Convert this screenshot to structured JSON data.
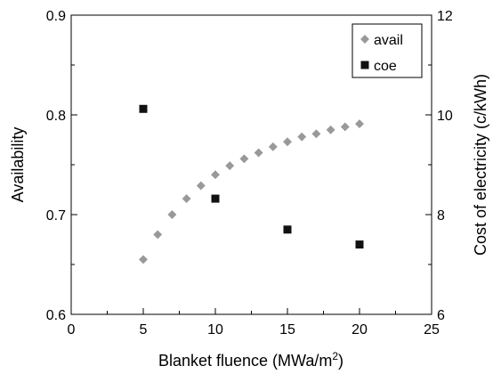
{
  "chart_data": {
    "type": "scatter",
    "title": "",
    "xlabel": "Blanket fluence (MWa/m",
    "xlabel_superscript": "2",
    "xlabel_suffix": ")",
    "ylabel_left": "Availability",
    "ylabel_right": "Cost of electricity (c/kWh)",
    "xlim": [
      0,
      25
    ],
    "ylim_left": [
      0.6,
      0.9
    ],
    "ylim_right": [
      6,
      12
    ],
    "x_ticks": [
      "0",
      "5",
      "10",
      "15",
      "20",
      "25"
    ],
    "y_left_ticks": [
      "0.6",
      "0.7",
      "0.8",
      "0.9"
    ],
    "y_right_ticks": [
      "6",
      "8",
      "10",
      "12"
    ],
    "grid": false,
    "legend_position": "top-right",
    "series": [
      {
        "name": "avail",
        "axis": "left",
        "marker": "diamond",
        "color": "#999999",
        "x": [
          5,
          6,
          7,
          8,
          9,
          10,
          11,
          12,
          13,
          14,
          15,
          16,
          17,
          18,
          19,
          20
        ],
        "y": [
          0.655,
          0.68,
          0.7,
          0.716,
          0.729,
          0.74,
          0.749,
          0.756,
          0.762,
          0.768,
          0.773,
          0.778,
          0.781,
          0.785,
          0.788,
          0.791
        ]
      },
      {
        "name": "coe",
        "axis": "right",
        "marker": "square",
        "color": "#111111",
        "x": [
          5,
          10,
          15,
          20
        ],
        "y": [
          10.12,
          8.32,
          7.7,
          7.4
        ]
      }
    ]
  }
}
